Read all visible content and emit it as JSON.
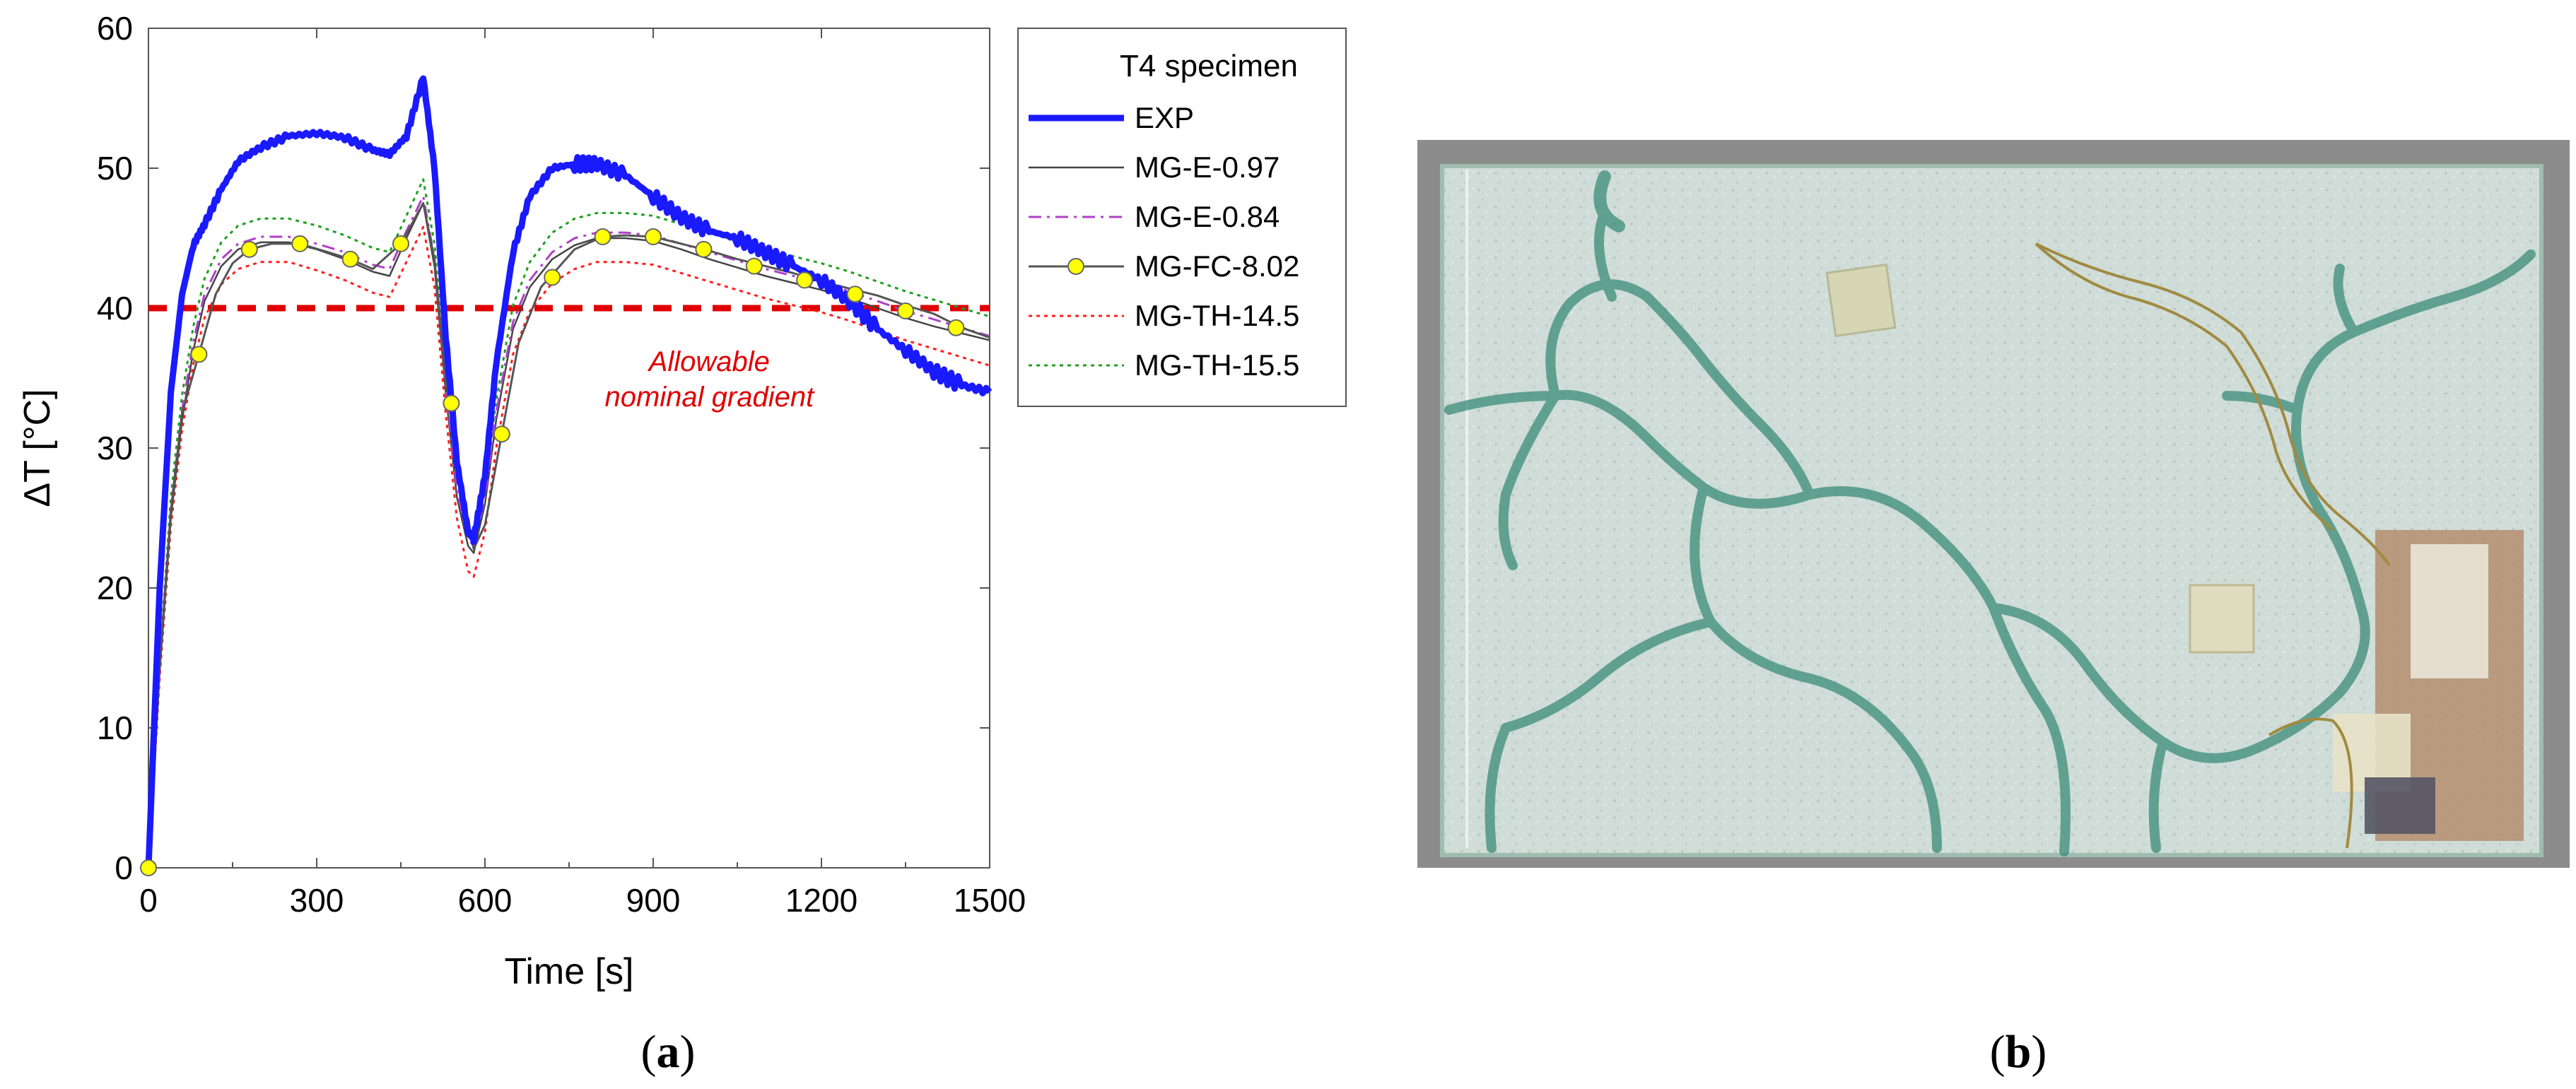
{
  "chart_data": {
    "type": "line",
    "xlabel": "Time  [s]",
    "ylabel": "ΔT  [°C]",
    "xlim": [
      0,
      1500
    ],
    "ylim": [
      0,
      60
    ],
    "xticks": [
      0,
      300,
      600,
      900,
      1200,
      1500
    ],
    "yticks": [
      0,
      10,
      20,
      30,
      40,
      50,
      60
    ],
    "grid": false,
    "legend": {
      "title": "T4 specimen",
      "placement": "outside-right",
      "entries": [
        "EXP",
        "MG-E-0.97",
        "MG-E-0.84",
        "MG-FC-8.02",
        "MG-TH-14.5",
        "MG-TH-15.5"
      ]
    },
    "series": [
      {
        "name": "EXP",
        "color": "#1a1aff",
        "style": "solid-thick",
        "x": [
          0,
          20,
          40,
          60,
          80,
          100,
          130,
          160,
          200,
          250,
          300,
          350,
          400,
          430,
          460,
          490,
          510,
          530,
          550,
          570,
          580,
          600,
          620,
          650,
          680,
          720,
          760,
          800,
          850,
          900,
          950,
          1000,
          1050,
          1100,
          1150,
          1200,
          1250,
          1300,
          1350,
          1400,
          1450,
          1500
        ],
        "y": [
          0,
          20,
          34,
          41,
          44.5,
          46,
          48.5,
          50.5,
          51.5,
          52.3,
          52.5,
          52.2,
          51.3,
          51,
          52.3,
          56.5,
          50,
          38,
          29,
          24,
          23.5,
          28,
          36,
          44,
          48,
          50,
          50.3,
          50.3,
          49.5,
          48,
          46.5,
          45.5,
          45,
          44,
          43,
          42,
          40.5,
          38.5,
          37,
          35.5,
          34.5,
          34
        ]
      },
      {
        "name": "MG-E-0.97",
        "color": "#444444",
        "style": "solid-thin",
        "x": [
          0,
          20,
          40,
          60,
          80,
          100,
          130,
          160,
          200,
          250,
          300,
          350,
          400,
          430,
          460,
          490,
          510,
          530,
          550,
          570,
          580,
          600,
          620,
          650,
          680,
          720,
          760,
          800,
          850,
          900,
          950,
          1000,
          1050,
          1100,
          1150,
          1200,
          1250,
          1300,
          1350,
          1400,
          1450,
          1500
        ],
        "y": [
          0,
          14,
          25,
          32,
          37,
          40.5,
          43,
          44.2,
          44.7,
          44.7,
          44.2,
          43.5,
          42.6,
          42.3,
          45,
          47.5,
          43,
          34,
          26.5,
          23,
          22.5,
          26,
          32,
          38.5,
          41.5,
          43.5,
          44.5,
          45,
          45,
          44.8,
          44.2,
          43.5,
          42.9,
          42.3,
          41.8,
          41.3,
          40.7,
          40,
          39.3,
          38.7,
          38.2,
          37.7
        ]
      },
      {
        "name": "MG-E-0.84",
        "color": "#b040c8",
        "style": "dashdot",
        "x": [
          0,
          20,
          40,
          60,
          80,
          100,
          130,
          160,
          200,
          250,
          300,
          350,
          400,
          430,
          460,
          490,
          510,
          530,
          550,
          570,
          580,
          600,
          620,
          650,
          680,
          720,
          760,
          800,
          850,
          900,
          950,
          1000,
          1050,
          1100,
          1150,
          1200,
          1250,
          1300,
          1350,
          1400,
          1450,
          1500
        ],
        "y": [
          0,
          14.4,
          25.6,
          32.7,
          37.6,
          41,
          43.5,
          44.6,
          45.1,
          45.1,
          44.6,
          44,
          43.1,
          42.8,
          45.5,
          48,
          43.5,
          34.5,
          27,
          23.5,
          23,
          26.5,
          32.5,
          39,
          42,
          44,
          45,
          45.4,
          45.4,
          45.2,
          44.6,
          44,
          43.4,
          42.8,
          42.3,
          41.8,
          41.2,
          40.5,
          39.8,
          39.2,
          38.6,
          38
        ]
      },
      {
        "name": "MG-FC-8.02",
        "color": "#555555",
        "style": "solid-markers",
        "marker_color": "#ffff00",
        "x": [
          0,
          20,
          40,
          60,
          90,
          120,
          150,
          180,
          220,
          270,
          320,
          360,
          400,
          450,
          490,
          510,
          530,
          560,
          580,
          600,
          630,
          660,
          700,
          760,
          810,
          850,
          900,
          950,
          1000,
          1050,
          1100,
          1150,
          1200,
          1250,
          1300,
          1350,
          1400,
          1450,
          1500
        ],
        "y": [
          0,
          14.5,
          25.5,
          32.5,
          36.7,
          41,
          43.2,
          44.2,
          44.6,
          44.6,
          44,
          43.5,
          42.8,
          44.6,
          47.5,
          43.5,
          35,
          26,
          22.8,
          24.5,
          31,
          37.5,
          41.5,
          44.2,
          45.1,
          45.2,
          45.1,
          44.6,
          44.1,
          43.5,
          43,
          42.5,
          41.9,
          41.4,
          40.9,
          40.2,
          39.6,
          38.6,
          37.9
        ],
        "marker_x": [
          0,
          90,
          180,
          270,
          360,
          450,
          540,
          630,
          720,
          810,
          900,
          990,
          1080,
          1170,
          1260,
          1350,
          1440
        ],
        "marker_y": [
          0,
          36.7,
          44.2,
          44.6,
          43.5,
          44.6,
          33.2,
          31,
          42.2,
          45.1,
          45.1,
          44.2,
          43,
          42,
          41,
          39.8,
          38.6
        ]
      },
      {
        "name": "MG-TH-14.5",
        "color": "#ff2020",
        "style": "dotted",
        "x": [
          0,
          20,
          40,
          60,
          80,
          100,
          130,
          160,
          200,
          250,
          300,
          350,
          400,
          430,
          460,
          490,
          510,
          530,
          550,
          570,
          580,
          600,
          620,
          650,
          680,
          720,
          760,
          800,
          850,
          900,
          950,
          1000,
          1050,
          1100,
          1150,
          1200,
          1250,
          1300,
          1350,
          1400,
          1450,
          1500
        ],
        "y": [
          0,
          13.6,
          24.4,
          31.3,
          36,
          39.3,
          41.7,
          42.8,
          43.3,
          43.3,
          42.7,
          42,
          41.1,
          40.8,
          43.3,
          45.8,
          41.5,
          32.5,
          25,
          21.2,
          20.8,
          24,
          30,
          36.7,
          39.8,
          41.8,
          42.8,
          43.3,
          43.3,
          43.1,
          42.5,
          41.9,
          41.3,
          40.7,
          40.2,
          39.7,
          39.1,
          38.4,
          37.7,
          37.1,
          36.5,
          35.9
        ]
      },
      {
        "name": "MG-TH-15.5",
        "color": "#20a020",
        "style": "dotted",
        "x": [
          0,
          20,
          40,
          60,
          80,
          100,
          130,
          160,
          200,
          250,
          300,
          350,
          400,
          430,
          460,
          490,
          510,
          530,
          550,
          570,
          580,
          600,
          620,
          650,
          680,
          720,
          760,
          800,
          850,
          900,
          950,
          1000,
          1050,
          1100,
          1150,
          1200,
          1250,
          1300,
          1350,
          1400,
          1450,
          1500
        ],
        "y": [
          0,
          14.8,
          26.5,
          33.8,
          38.7,
          42.1,
          44.7,
          45.9,
          46.4,
          46.4,
          45.9,
          45.2,
          44.3,
          44,
          46.6,
          49.2,
          44.6,
          35.5,
          28,
          24,
          23.6,
          27.2,
          33.4,
          40.2,
          43.3,
          45.4,
          46.4,
          46.8,
          46.8,
          46.6,
          46,
          45.4,
          44.8,
          44.2,
          43.7,
          43.2,
          42.6,
          41.9,
          41.2,
          40.6,
          40,
          39.4
        ]
      },
      {
        "name": "Allowable nominal gradient",
        "color": "#e00000",
        "style": "dashed-thick",
        "x": [
          0,
          1500
        ],
        "y": [
          40,
          40
        ]
      }
    ],
    "annotation": {
      "line1": "Allowable",
      "line2": "nominal gradient",
      "x": 1000,
      "y": 36
    }
  },
  "panel_labels": {
    "a": {
      "open": "(",
      "letter": "a",
      "close": ")"
    },
    "b": {
      "open": "(",
      "letter": "b",
      "close": ")"
    }
  },
  "photo": {
    "glass_color": "#c8d8d2",
    "background_color": "#8a8a8a"
  }
}
